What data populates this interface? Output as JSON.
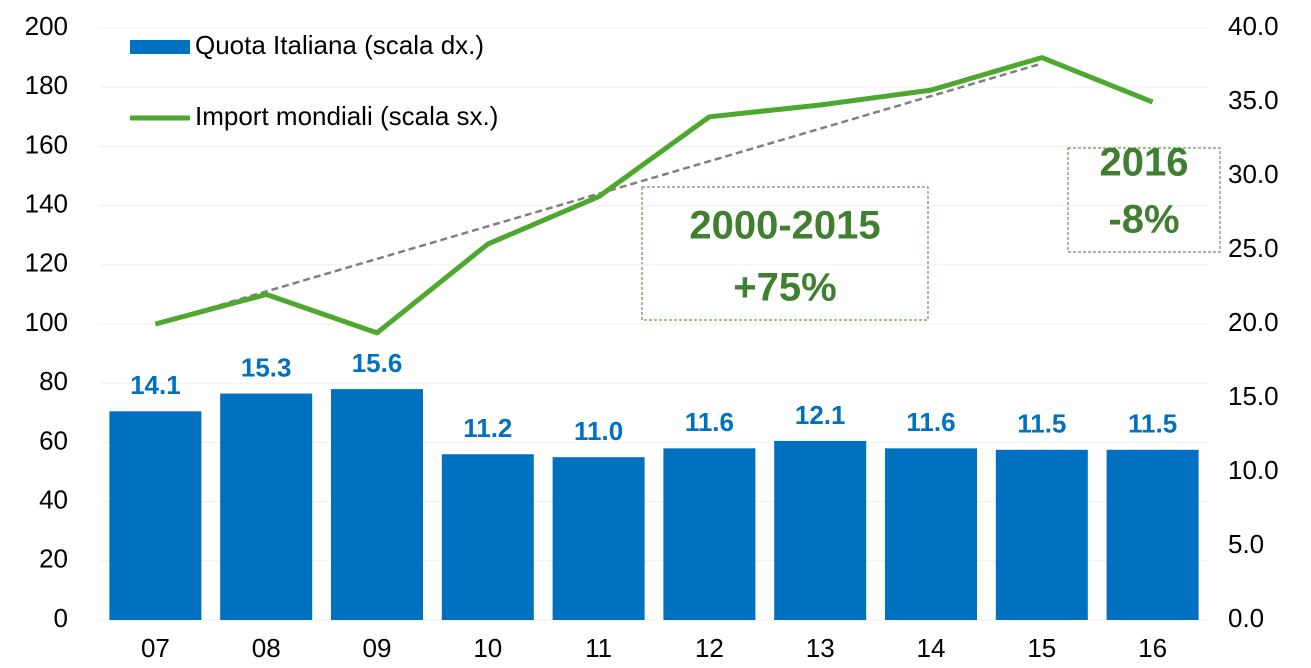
{
  "chart_data": {
    "type": "bar-line",
    "categories": [
      "07",
      "08",
      "09",
      "10",
      "11",
      "12",
      "13",
      "14",
      "15",
      "16"
    ],
    "series": [
      {
        "name": "Quota Italiana (scala dx.)",
        "type": "bar",
        "axis": "y2",
        "color": "#0070c0",
        "values": [
          14.1,
          15.3,
          15.6,
          11.2,
          11.0,
          11.6,
          12.1,
          11.6,
          11.5,
          11.5
        ],
        "value_labels": [
          "14.1",
          "15.3",
          "15.6",
          "11.2",
          "11.0",
          "11.6",
          "12.1",
          "11.6",
          "11.5",
          "11.5"
        ]
      },
      {
        "name": "Import mondiali (scala sx.)",
        "type": "line",
        "axis": "y",
        "color": "#4ea72e",
        "values": [
          100,
          110,
          97,
          127,
          143,
          170,
          174,
          179,
          190,
          175
        ]
      }
    ],
    "trend": {
      "categories": [
        "07",
        "15"
      ],
      "values": [
        100,
        188
      ],
      "color": "#808080"
    },
    "annotations": [
      {
        "lines": [
          "2000-2015",
          "+75%"
        ],
        "color": "#3f7f2f"
      },
      {
        "lines": [
          "2016",
          "-8%"
        ],
        "color": "#3f7f2f"
      }
    ],
    "ylim": [
      0,
      200
    ],
    "yticks": [
      0,
      20,
      40,
      60,
      80,
      100,
      120,
      140,
      160,
      180,
      200
    ],
    "y2lim": [
      0,
      40
    ],
    "y2ticks": [
      {
        "value": 0,
        "label": "0.0"
      },
      {
        "value": 5,
        "label": "5.0"
      },
      {
        "value": 10,
        "label": "10.0"
      },
      {
        "value": 15,
        "label": "15.0"
      },
      {
        "value": 20,
        "label": "20.0"
      },
      {
        "value": 25,
        "label": "25.0"
      },
      {
        "value": 30,
        "label": "30.0"
      },
      {
        "value": 35,
        "label": "35.0"
      },
      {
        "value": 40,
        "label": "40.0"
      }
    ],
    "grid": true,
    "legend": "top-left"
  }
}
